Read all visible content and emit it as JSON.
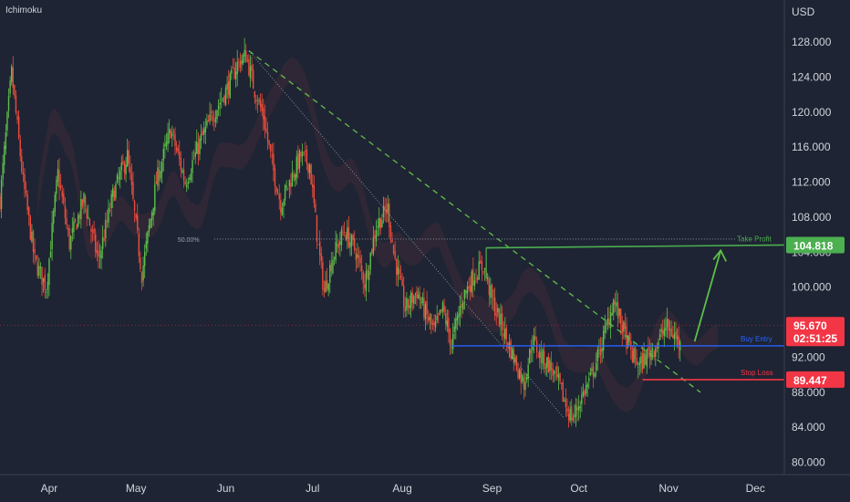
{
  "indicator": "Ichimoku",
  "currency": "USD",
  "chart_data": {
    "type": "candlestick",
    "title": "",
    "y_ticks": [
      128,
      124,
      120,
      116,
      112,
      108,
      104,
      100,
      96,
      92,
      88,
      84,
      80
    ],
    "y_tick_labels": [
      "128.000",
      "124.000",
      "120.000",
      "116.000",
      "112.000",
      "108.000",
      "104.000",
      "100.000",
      "96.000",
      "92.000",
      "88.000",
      "84.000",
      "80.000"
    ],
    "ylim": [
      78.6,
      132.8
    ],
    "x_labels": [
      "Apr",
      "May",
      "Jun",
      "Jul",
      "Aug",
      "Sep",
      "Oct",
      "Nov",
      "Dec"
    ],
    "x_label_days": [
      33,
      63,
      94,
      124,
      155,
      186,
      216,
      247,
      277
    ],
    "xlim": [
      16,
      287
    ],
    "current_price": 95.67,
    "current_price_label": "95.670",
    "countdown": "02:51:25",
    "take_profit": {
      "label": "Take Profit",
      "price": 104.818,
      "price_label": "104.818",
      "color": "#4caf50"
    },
    "buy_entry": {
      "label": "Buy Entry",
      "price": 93.3,
      "color": "#2962ff"
    },
    "stop_loss": {
      "label": "Stop Loss",
      "price": 89.447,
      "price_label": "89.447",
      "color": "#f23645"
    },
    "fib_label": "50.00%",
    "fib_price": 105.5,
    "anchors": [
      {
        "d": 16,
        "p": 110.0
      },
      {
        "d": 20,
        "p": 124.5
      },
      {
        "d": 24,
        "p": 112.0
      },
      {
        "d": 28,
        "p": 103.0
      },
      {
        "d": 32,
        "p": 100.0
      },
      {
        "d": 36,
        "p": 113.0
      },
      {
        "d": 40,
        "p": 105.0
      },
      {
        "d": 45,
        "p": 110.0
      },
      {
        "d": 50,
        "p": 103.0
      },
      {
        "d": 55,
        "p": 110.5
      },
      {
        "d": 60,
        "p": 115.0
      },
      {
        "d": 65,
        "p": 101.5
      },
      {
        "d": 70,
        "p": 112.0
      },
      {
        "d": 75,
        "p": 118.0
      },
      {
        "d": 80,
        "p": 112.0
      },
      {
        "d": 85,
        "p": 116.5
      },
      {
        "d": 90,
        "p": 120.0
      },
      {
        "d": 95,
        "p": 123.0
      },
      {
        "d": 98,
        "p": 125.5
      },
      {
        "d": 101,
        "p": 126.5
      },
      {
        "d": 104,
        "p": 122.5
      },
      {
        "d": 107,
        "p": 119.5
      },
      {
        "d": 110,
        "p": 114.0
      },
      {
        "d": 113,
        "p": 109.5
      },
      {
        "d": 116,
        "p": 112.0
      },
      {
        "d": 120,
        "p": 115.0
      },
      {
        "d": 123,
        "p": 114.0
      },
      {
        "d": 126,
        "p": 104.5
      },
      {
        "d": 128,
        "p": 99.5
      },
      {
        "d": 131,
        "p": 103.5
      },
      {
        "d": 135,
        "p": 106.5
      },
      {
        "d": 139,
        "p": 104.0
      },
      {
        "d": 142,
        "p": 100.5
      },
      {
        "d": 146,
        "p": 107.0
      },
      {
        "d": 150,
        "p": 109.0
      },
      {
        "d": 152,
        "p": 104.0
      },
      {
        "d": 156,
        "p": 97.5
      },
      {
        "d": 160,
        "p": 99.5
      },
      {
        "d": 163,
        "p": 97.0
      },
      {
        "d": 166,
        "p": 95.0
      },
      {
        "d": 169,
        "p": 97.5
      },
      {
        "d": 172,
        "p": 93.5
      },
      {
        "d": 176,
        "p": 99.0
      },
      {
        "d": 180,
        "p": 101.5
      },
      {
        "d": 183,
        "p": 102.5
      },
      {
        "d": 186,
        "p": 98.5
      },
      {
        "d": 190,
        "p": 95.0
      },
      {
        "d": 194,
        "p": 91.5
      },
      {
        "d": 197,
        "p": 89.0
      },
      {
        "d": 200,
        "p": 94.0
      },
      {
        "d": 203,
        "p": 92.0
      },
      {
        "d": 206,
        "p": 91.0
      },
      {
        "d": 209,
        "p": 89.0
      },
      {
        "d": 212,
        "p": 86.0
      },
      {
        "d": 214,
        "p": 85.0
      },
      {
        "d": 217,
        "p": 87.5
      },
      {
        "d": 220,
        "p": 89.5
      },
      {
        "d": 223,
        "p": 92.5
      },
      {
        "d": 226,
        "p": 96.0
      },
      {
        "d": 228,
        "p": 98.5
      },
      {
        "d": 231,
        "p": 95.5
      },
      {
        "d": 234,
        "p": 92.5
      },
      {
        "d": 237,
        "p": 91.0
      },
      {
        "d": 240,
        "p": 92.5
      },
      {
        "d": 243,
        "p": 93.5
      },
      {
        "d": 246,
        "p": 95.5
      },
      {
        "d": 249,
        "p": 94.5
      },
      {
        "d": 251,
        "p": 93.3
      }
    ]
  }
}
